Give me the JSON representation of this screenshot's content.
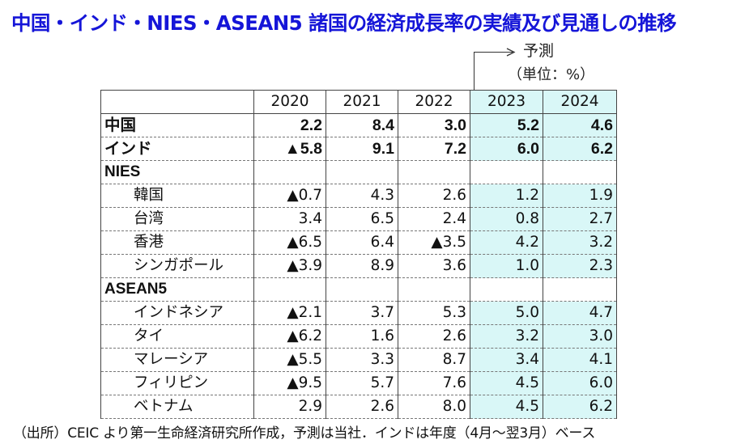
{
  "title": "中国・インド・NIES・ASEAN5 諸国の経済成長率の実績及び見通しの推移",
  "forecast_label": "予測",
  "unit_label": "（単位：%）",
  "colors": {
    "title": "#1515d8",
    "forecast_fill": "#d9f7f7"
  },
  "table": {
    "columns": [
      "",
      "2020",
      "2021",
      "2022",
      "2023",
      "2024"
    ],
    "rows": [
      {
        "name": "中国",
        "values": [
          "2.2",
          "8.4",
          "3.0",
          "5.2",
          "4.6"
        ]
      },
      {
        "name": "インド",
        "values": [
          "▲5.8",
          "9.1",
          "7.2",
          "6.0",
          "6.2"
        ]
      },
      {
        "name": "NIES",
        "values": [
          "",
          "",
          "",
          "",
          ""
        ]
      },
      {
        "name": "韓国",
        "values": [
          "▲0.7",
          "4.3",
          "2.6",
          "1.2",
          "1.9"
        ]
      },
      {
        "name": "台湾",
        "values": [
          "3.4",
          "6.5",
          "2.4",
          "0.8",
          "2.7"
        ]
      },
      {
        "name": "香港",
        "values": [
          "▲6.5",
          "6.4",
          "▲3.5",
          "4.2",
          "3.2"
        ]
      },
      {
        "name": "シンガポール",
        "values": [
          "▲3.9",
          "8.9",
          "3.6",
          "1.0",
          "2.3"
        ]
      },
      {
        "name": "ASEAN5",
        "values": [
          "",
          "",
          "",
          "",
          ""
        ]
      },
      {
        "name": "インドネシア",
        "values": [
          "▲2.1",
          "3.7",
          "5.3",
          "5.0",
          "4.7"
        ]
      },
      {
        "name": "タイ",
        "values": [
          "▲6.2",
          "1.6",
          "2.6",
          "3.2",
          "3.0"
        ]
      },
      {
        "name": "マレーシア",
        "values": [
          "▲5.5",
          "3.3",
          "8.7",
          "3.4",
          "4.1"
        ]
      },
      {
        "name": "フィリピン",
        "values": [
          "▲9.5",
          "5.7",
          "7.6",
          "4.5",
          "6.0"
        ]
      },
      {
        "name": "ベトナム",
        "values": [
          "2.9",
          "2.6",
          "8.0",
          "4.5",
          "6.2"
        ]
      }
    ]
  },
  "footer": "（出所）CEIC より第一生命経済研究所作成，予測は当社．インドは年度（4月～翌3月）ベース"
}
